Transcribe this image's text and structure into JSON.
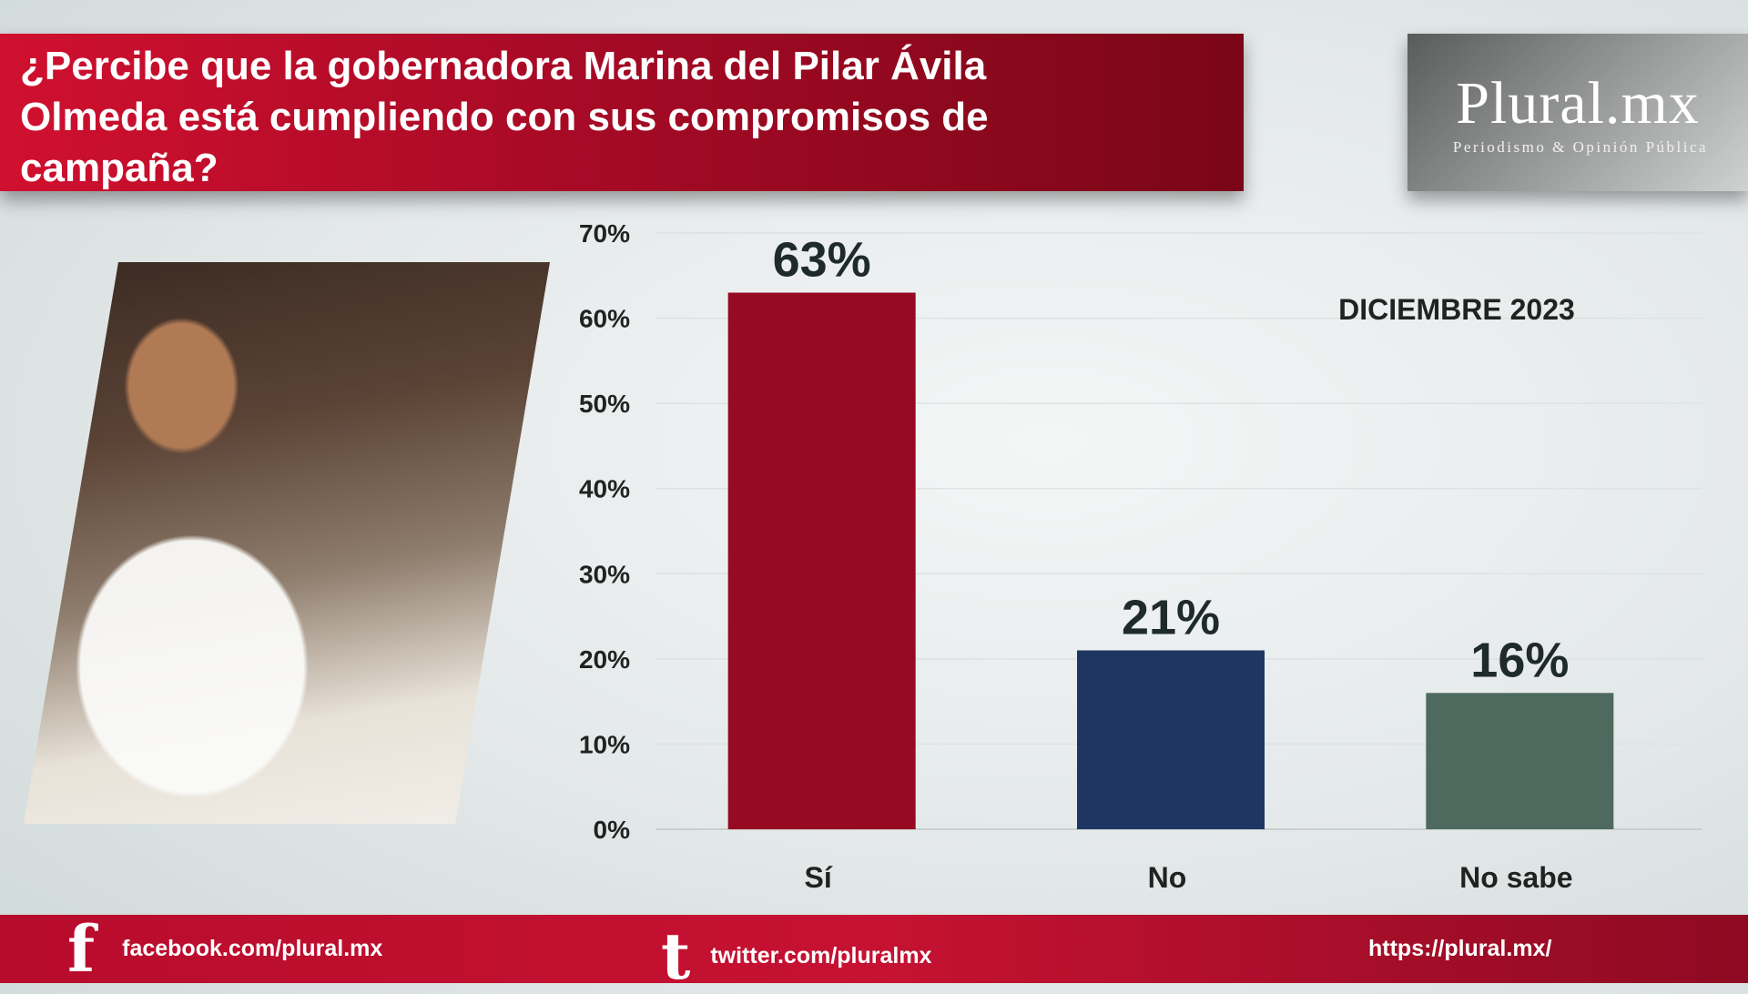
{
  "title": "¿Percibe que la gobernadora Marina del Pilar Ávila Olmeda está cumpliendo con sus compromisos de campaña?",
  "logo": {
    "main": "Plural.mx",
    "sub": "Periodismo & Opinión Pública"
  },
  "footer": {
    "facebook": "facebook.com/plural.mx",
    "twitter": "twitter.com/pluralmx",
    "website": "https://plural.mx/"
  },
  "chart_data": {
    "type": "bar",
    "annotation": "DICIEMBRE 2023",
    "categories": [
      "Sí",
      "No",
      "No sabe"
    ],
    "values": [
      63,
      21,
      16
    ],
    "data_labels": [
      "63%",
      "21%",
      "16%"
    ],
    "colors": [
      "#960a22",
      "#1f3663",
      "#4e695e"
    ],
    "ylim": [
      0,
      70
    ],
    "yticks": [
      0,
      10,
      20,
      30,
      40,
      50,
      60,
      70
    ],
    "ytick_labels": [
      "0%",
      "10%",
      "20%",
      "30%",
      "40%",
      "50%",
      "60%",
      "70%"
    ],
    "grid": true,
    "legend": "none"
  }
}
